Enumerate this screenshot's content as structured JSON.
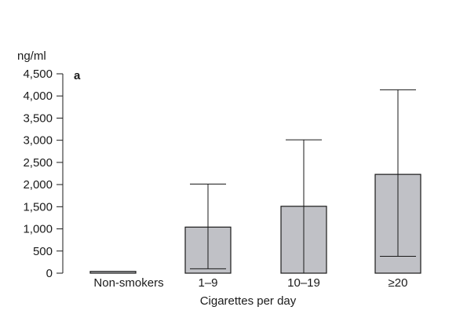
{
  "chart_data": {
    "type": "bar",
    "panel_label": "a",
    "ylabel": "ng/ml",
    "xlabel": "Cigarettes per day",
    "ylim": [
      0,
      4500
    ],
    "yticks": [
      0,
      500,
      1000,
      1500,
      2000,
      2500,
      3000,
      3500,
      4000,
      4500
    ],
    "ytick_labels": [
      "0",
      "500",
      "1,000",
      "1,500",
      "2,000",
      "2,500",
      "3,000",
      "3,500",
      "4,000",
      "4,500"
    ],
    "categories": [
      "Non-smokers",
      "1–9",
      "10–19",
      "≥20"
    ],
    "values": [
      40,
      1040,
      1510,
      2230
    ],
    "error_upper": [
      null,
      2010,
      3010,
      4140
    ],
    "error_lower": [
      null,
      100,
      0,
      380
    ],
    "grid": false,
    "bar_color": "#c0c1c6",
    "edge_color": "#1a1a1a"
  }
}
